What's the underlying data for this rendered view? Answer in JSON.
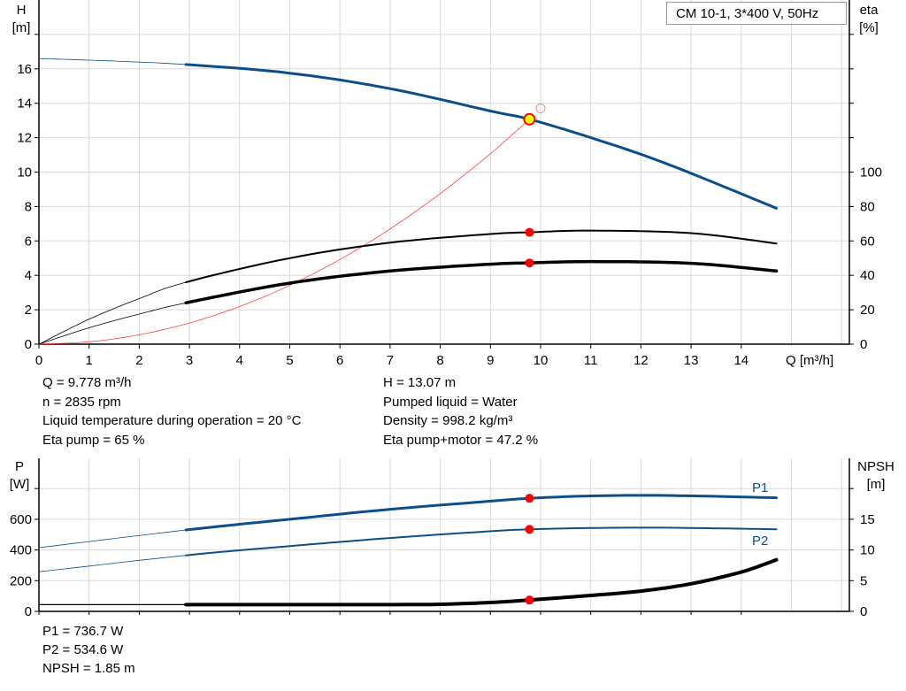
{
  "title": "CM 10-1, 3*400 V, 50Hz",
  "colors": {
    "head": "#0b4f8a",
    "eta": "#000000",
    "system": "#ff4040",
    "power": "#0b4f8a",
    "npsh": "#000000",
    "duty_point": "#ff0000",
    "duty_fill": "#ffff00",
    "grid": "#d8d8d8"
  },
  "chart_data": [
    {
      "type": "line",
      "xlabel": "Q [m³/h]",
      "ylabel": "H\n[m]",
      "ylabel_parts": [
        "H",
        "[m]"
      ],
      "y2label_parts": [
        "eta",
        "[%]"
      ],
      "xlim": [
        0,
        16
      ],
      "ylim": [
        0,
        20
      ],
      "y2lim": [
        0,
        102.6
      ],
      "x_ticks": [
        "0",
        "1",
        "2",
        "3",
        "4",
        "5",
        "6",
        "7",
        "8",
        "9",
        "10",
        "11",
        "12",
        "13",
        "14"
      ],
      "y_ticks": [
        "0",
        "2",
        "4",
        "6",
        "8",
        "10",
        "12",
        "14",
        "16"
      ],
      "y2_ticks": [
        "0",
        "20",
        "40",
        "60",
        "80",
        "100"
      ],
      "grid": true,
      "series": [
        {
          "key": "head",
          "axis": "left",
          "x": [
            0,
            1.5,
            2.93,
            5,
            7,
            9,
            9.778,
            11,
            12.5,
            14.7
          ],
          "y": [
            16.6,
            16.45,
            16.25,
            15.75,
            14.85,
            13.55,
            13.07,
            12.0,
            10.5,
            7.9
          ]
        },
        {
          "key": "eta_pump",
          "axis": "right",
          "x": [
            0,
            1,
            2,
            2.93,
            5,
            7,
            9,
            9.778,
            11,
            13,
            14.7
          ],
          "y": [
            0,
            14.5,
            26.5,
            36,
            50,
            59,
            64,
            65,
            66,
            64.5,
            58.5
          ]
        },
        {
          "key": "eta_total",
          "axis": "right",
          "x": [
            0,
            1,
            2,
            2.93,
            5,
            7,
            9,
            9.778,
            11,
            13,
            14.7
          ],
          "y": [
            0,
            9.5,
            17.5,
            24,
            35.5,
            42.5,
            46.5,
            47.2,
            48,
            47,
            42.5
          ]
        },
        {
          "key": "system",
          "axis": "left",
          "x": [
            0,
            1,
            2,
            3,
            4,
            5,
            6,
            7,
            8,
            9,
            9.778
          ],
          "y": [
            0,
            0.137,
            0.547,
            1.23,
            2.19,
            3.42,
            4.92,
            6.7,
            8.75,
            11.07,
            13.07
          ]
        }
      ],
      "duty_point": {
        "Q": 9.778,
        "H": 13.07,
        "eta_pump": 65,
        "eta_total": 47.2
      },
      "requested_point": {
        "Q": 10.0,
        "H": 13.7
      }
    },
    {
      "type": "line",
      "ylabel_parts": [
        "P",
        "[W]"
      ],
      "y2label_parts": [
        "NPSH",
        "[m]"
      ],
      "xlim": [
        0,
        16
      ],
      "ylim": [
        0,
        1000
      ],
      "y2lim": [
        0,
        25
      ],
      "y_ticks": [
        "0",
        "200",
        "400",
        "600"
      ],
      "y2_ticks": [
        "0",
        "5",
        "10",
        "15"
      ],
      "grid": true,
      "series": [
        {
          "key": "P1",
          "name": "P1",
          "axis": "left",
          "x": [
            0,
            2.93,
            5,
            7,
            9,
            9.778,
            11,
            12.5,
            14.7
          ],
          "y": [
            415,
            530,
            600,
            665,
            718,
            736.7,
            752,
            755,
            740
          ]
        },
        {
          "key": "P2",
          "name": "P2",
          "axis": "left",
          "x": [
            0,
            2.93,
            5,
            7,
            9,
            9.778,
            11,
            12.5,
            14.7
          ],
          "y": [
            258,
            365,
            425,
            478,
            522,
            534.6,
            543,
            545,
            535
          ]
        },
        {
          "key": "NPSH",
          "axis": "right",
          "x": [
            0,
            2.93,
            5,
            7,
            8,
            9,
            9.778,
            11,
            12,
            13,
            14,
            14.7
          ],
          "y": [
            1.1,
            1.1,
            1.1,
            1.1,
            1.15,
            1.45,
            1.85,
            2.6,
            3.3,
            4.5,
            6.4,
            8.4
          ]
        }
      ]
    }
  ],
  "info_top": {
    "q": "Q = 9.778 m³/h",
    "n": "n = 2835 rpm",
    "temp": "Liquid temperature during operation = 20 °C",
    "eta_pump": "Eta pump = 65 %",
    "h": "H = 13.07 m",
    "liquid": "Pumped liquid = Water",
    "density": "Density = 998.2 kg/m³",
    "eta_total": "Eta pump+motor = 47.2 %"
  },
  "info_bottom": {
    "p1": "P1 = 736.7 W",
    "p2": "P2 = 534.6 W",
    "npsh": "NPSH = 1.85 m"
  }
}
